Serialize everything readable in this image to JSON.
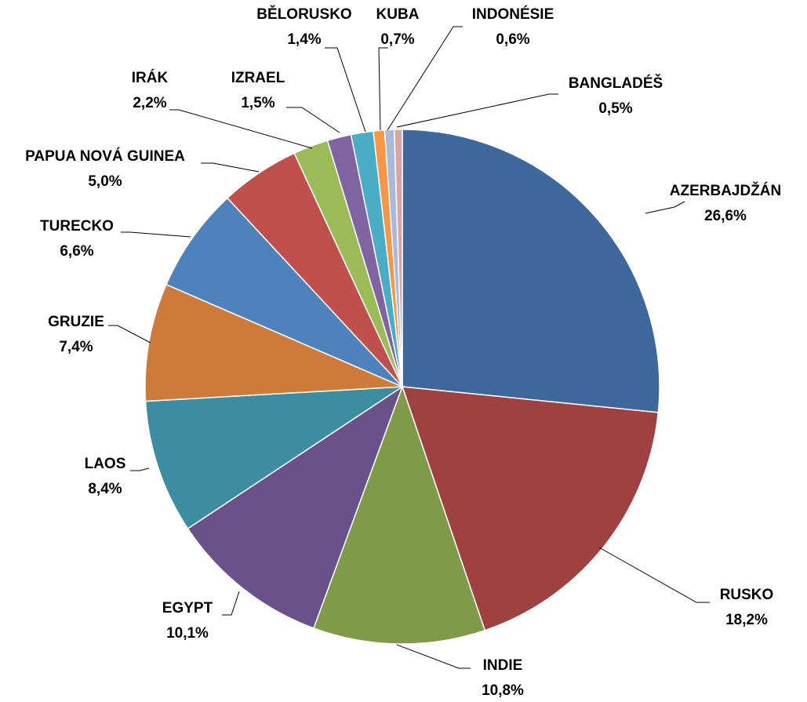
{
  "chart_data": {
    "type": "pie",
    "title": "",
    "legend": "none",
    "start_angle_deg": 0,
    "direction": "clockwise",
    "slices": [
      {
        "label": "AZERBAJDŽÁN",
        "value": 26.6,
        "value_label": "26,6%",
        "color": "#3E689C"
      },
      {
        "label": "RUSKO",
        "value": 18.2,
        "value_label": "18,2%",
        "color": "#9E4140"
      },
      {
        "label": "INDIE",
        "value": 10.8,
        "value_label": "10,8%",
        "color": "#7F9A48"
      },
      {
        "label": "EGYPT",
        "value": 10.1,
        "value_label": "10,1%",
        "color": "#69528A"
      },
      {
        "label": "LAOS",
        "value": 8.4,
        "value_label": "8,4%",
        "color": "#3C8DA1"
      },
      {
        "label": "GRUZIE",
        "value": 7.4,
        "value_label": "7,4%",
        "color": "#CD7A3A"
      },
      {
        "label": "TURECKO",
        "value": 6.6,
        "value_label": "6,6%",
        "color": "#4F81BD"
      },
      {
        "label": "PAPUA NOVÁ GUINEA",
        "value": 5.0,
        "value_label": "5,0%",
        "color": "#C0504D"
      },
      {
        "label": "IRÁK",
        "value": 2.2,
        "value_label": "2,2%",
        "color": "#9BBB59"
      },
      {
        "label": "IZRAEL",
        "value": 1.5,
        "value_label": "1,5%",
        "color": "#8064A2"
      },
      {
        "label": "BĚLORUSKO",
        "value": 1.4,
        "value_label": "1,4%",
        "color": "#4BACC6"
      },
      {
        "label": "KUBA",
        "value": 0.7,
        "value_label": "0,7%",
        "color": "#F79646"
      },
      {
        "label": "INDONÉSIE",
        "value": 0.6,
        "value_label": "0,6%",
        "color": "#A9B9DC"
      },
      {
        "label": "BANGLADÉŠ",
        "value": 0.5,
        "value_label": "0,5%",
        "color": "#D9A5A4"
      }
    ]
  }
}
